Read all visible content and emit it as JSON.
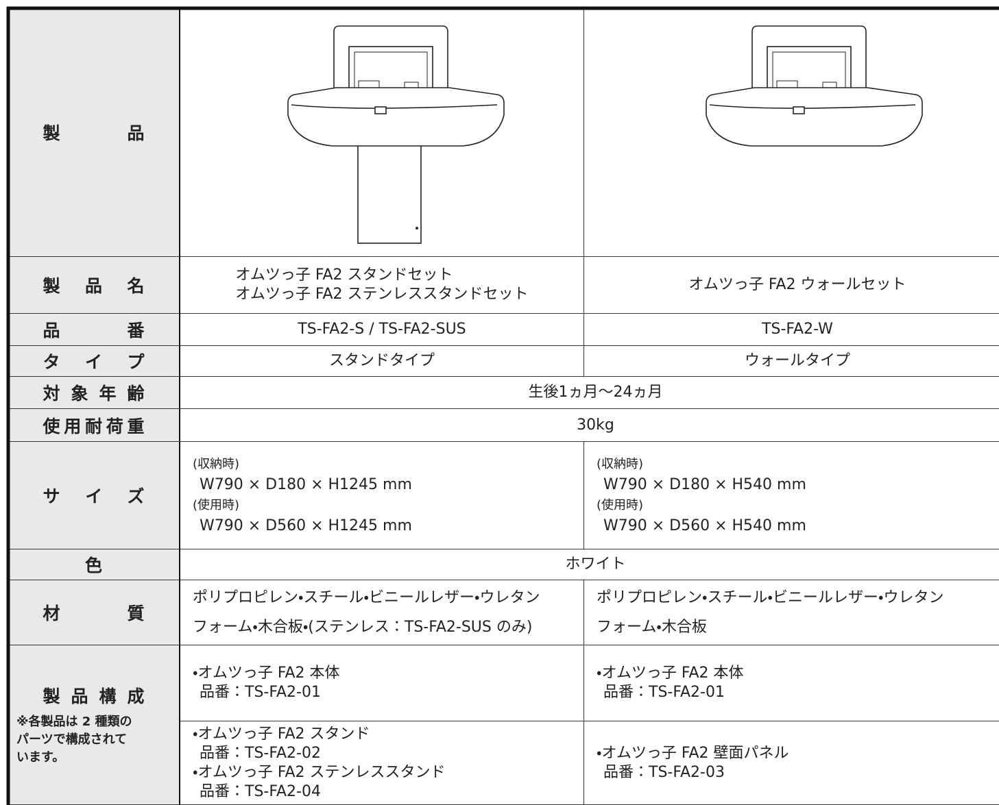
{
  "table": {
    "rows": [
      {
        "label": "製品"
      },
      {
        "label": "製品名",
        "stand": [
          "オムツっ子 FA2 スタンドセット",
          "オムツっ子 FA2 ステンレススタンドセット"
        ],
        "wall": [
          "オムツっ子 FA2 ウォールセット"
        ]
      },
      {
        "label": "品番",
        "stand": [
          "TS-FA2-S / TS-FA2-SUS"
        ],
        "wall": [
          "TS-FA2-W"
        ]
      },
      {
        "label": "タイプ",
        "stand": [
          "スタンドタイプ"
        ],
        "wall": [
          "ウォールタイプ"
        ]
      },
      {
        "label": "対象年齢",
        "both": [
          "生後1ヵ月〜24ヵ月"
        ]
      },
      {
        "label": "使用耐荷重",
        "both": [
          "30kg"
        ]
      },
      {
        "label": "サイズ",
        "stand": [
          "(収納時)",
          "W790 × D180 × H1245 mm",
          "(使用時)",
          "W790 × D560 × H1245 mm"
        ],
        "wall": [
          "(収納時)",
          "W790 × D180 × H540 mm",
          "(使用時)",
          "W790 × D560 × H540 mm"
        ]
      },
      {
        "label": "色",
        "both": [
          "ホワイト"
        ]
      },
      {
        "label": "材質",
        "stand": [
          "ポリプロピレン・スチール・ビニールレザー・ウレタン",
          "フォーム・木合板・(ステンレス：TS-FA2-SUS のみ)"
        ],
        "wall": [
          "ポリプロピレン・スチール・ビニールレザー・ウレタン",
          "フォーム・木合板"
        ]
      },
      {
        "label": "製品構成",
        "note": [
          "※各製品は 2 種類の",
          "パーツで構成されて",
          "います。"
        ],
        "parts": [
          {
            "stand": [
              "・オムツっ子 FA2 本体",
              "品番：TS-FA2-01"
            ],
            "wall": [
              "・オムツっ子 FA2 本体",
              "品番：TS-FA2-01"
            ]
          },
          {
            "stand": [
              "・オムツっ子 FA2 スタンド",
              "品番：TS-FA2-02",
              "・オムツっ子 FA2 ステンレススタンド",
              "品番：TS-FA2-04"
            ],
            "wall": [
              "・オムツっ子 FA2 壁面パネル",
              "品番：TS-FA2-03"
            ]
          }
        ]
      }
    ]
  }
}
